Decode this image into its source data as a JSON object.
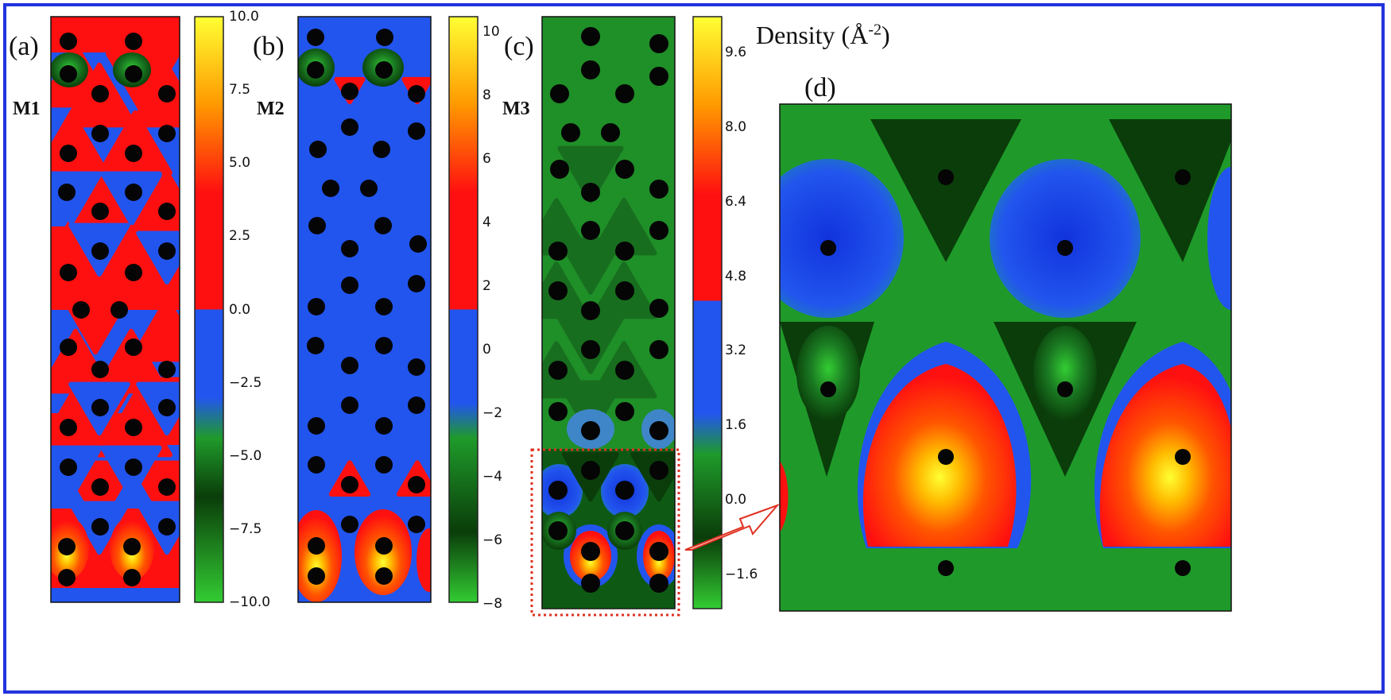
{
  "panels": {
    "a": {
      "label": "(a)",
      "model": "M1",
      "ticks": [
        "10.0",
        "7.5",
        "5.0",
        "2.5",
        "0.0",
        "−2.5",
        "−5.0",
        "−7.5",
        "−10.0"
      ]
    },
    "b": {
      "label": "(b)",
      "model": "M2",
      "ticks": [
        "10",
        "8",
        "6",
        "4",
        "2",
        "0",
        "−2",
        "−4",
        "−6",
        "−8"
      ]
    },
    "c": {
      "label": "(c)",
      "model": "M3",
      "ticks": [
        "9.6",
        "8.0",
        "6.4",
        "4.8",
        "3.2",
        "1.6",
        "0.0",
        "−1.6"
      ]
    },
    "d": {
      "label": "(d)"
    }
  },
  "colorbar_title": {
    "text": "Density (Å",
    "sup": "-2",
    "close": ")"
  },
  "colors": {
    "frame": "#2233dd",
    "positive": "#ff1010",
    "negative": "#2255ee",
    "hot": "#ffee00",
    "green_dark": "#0a3d0a",
    "green": "#1f9a2a",
    "atom": "#050505",
    "zoom_box": "#e03020"
  }
}
